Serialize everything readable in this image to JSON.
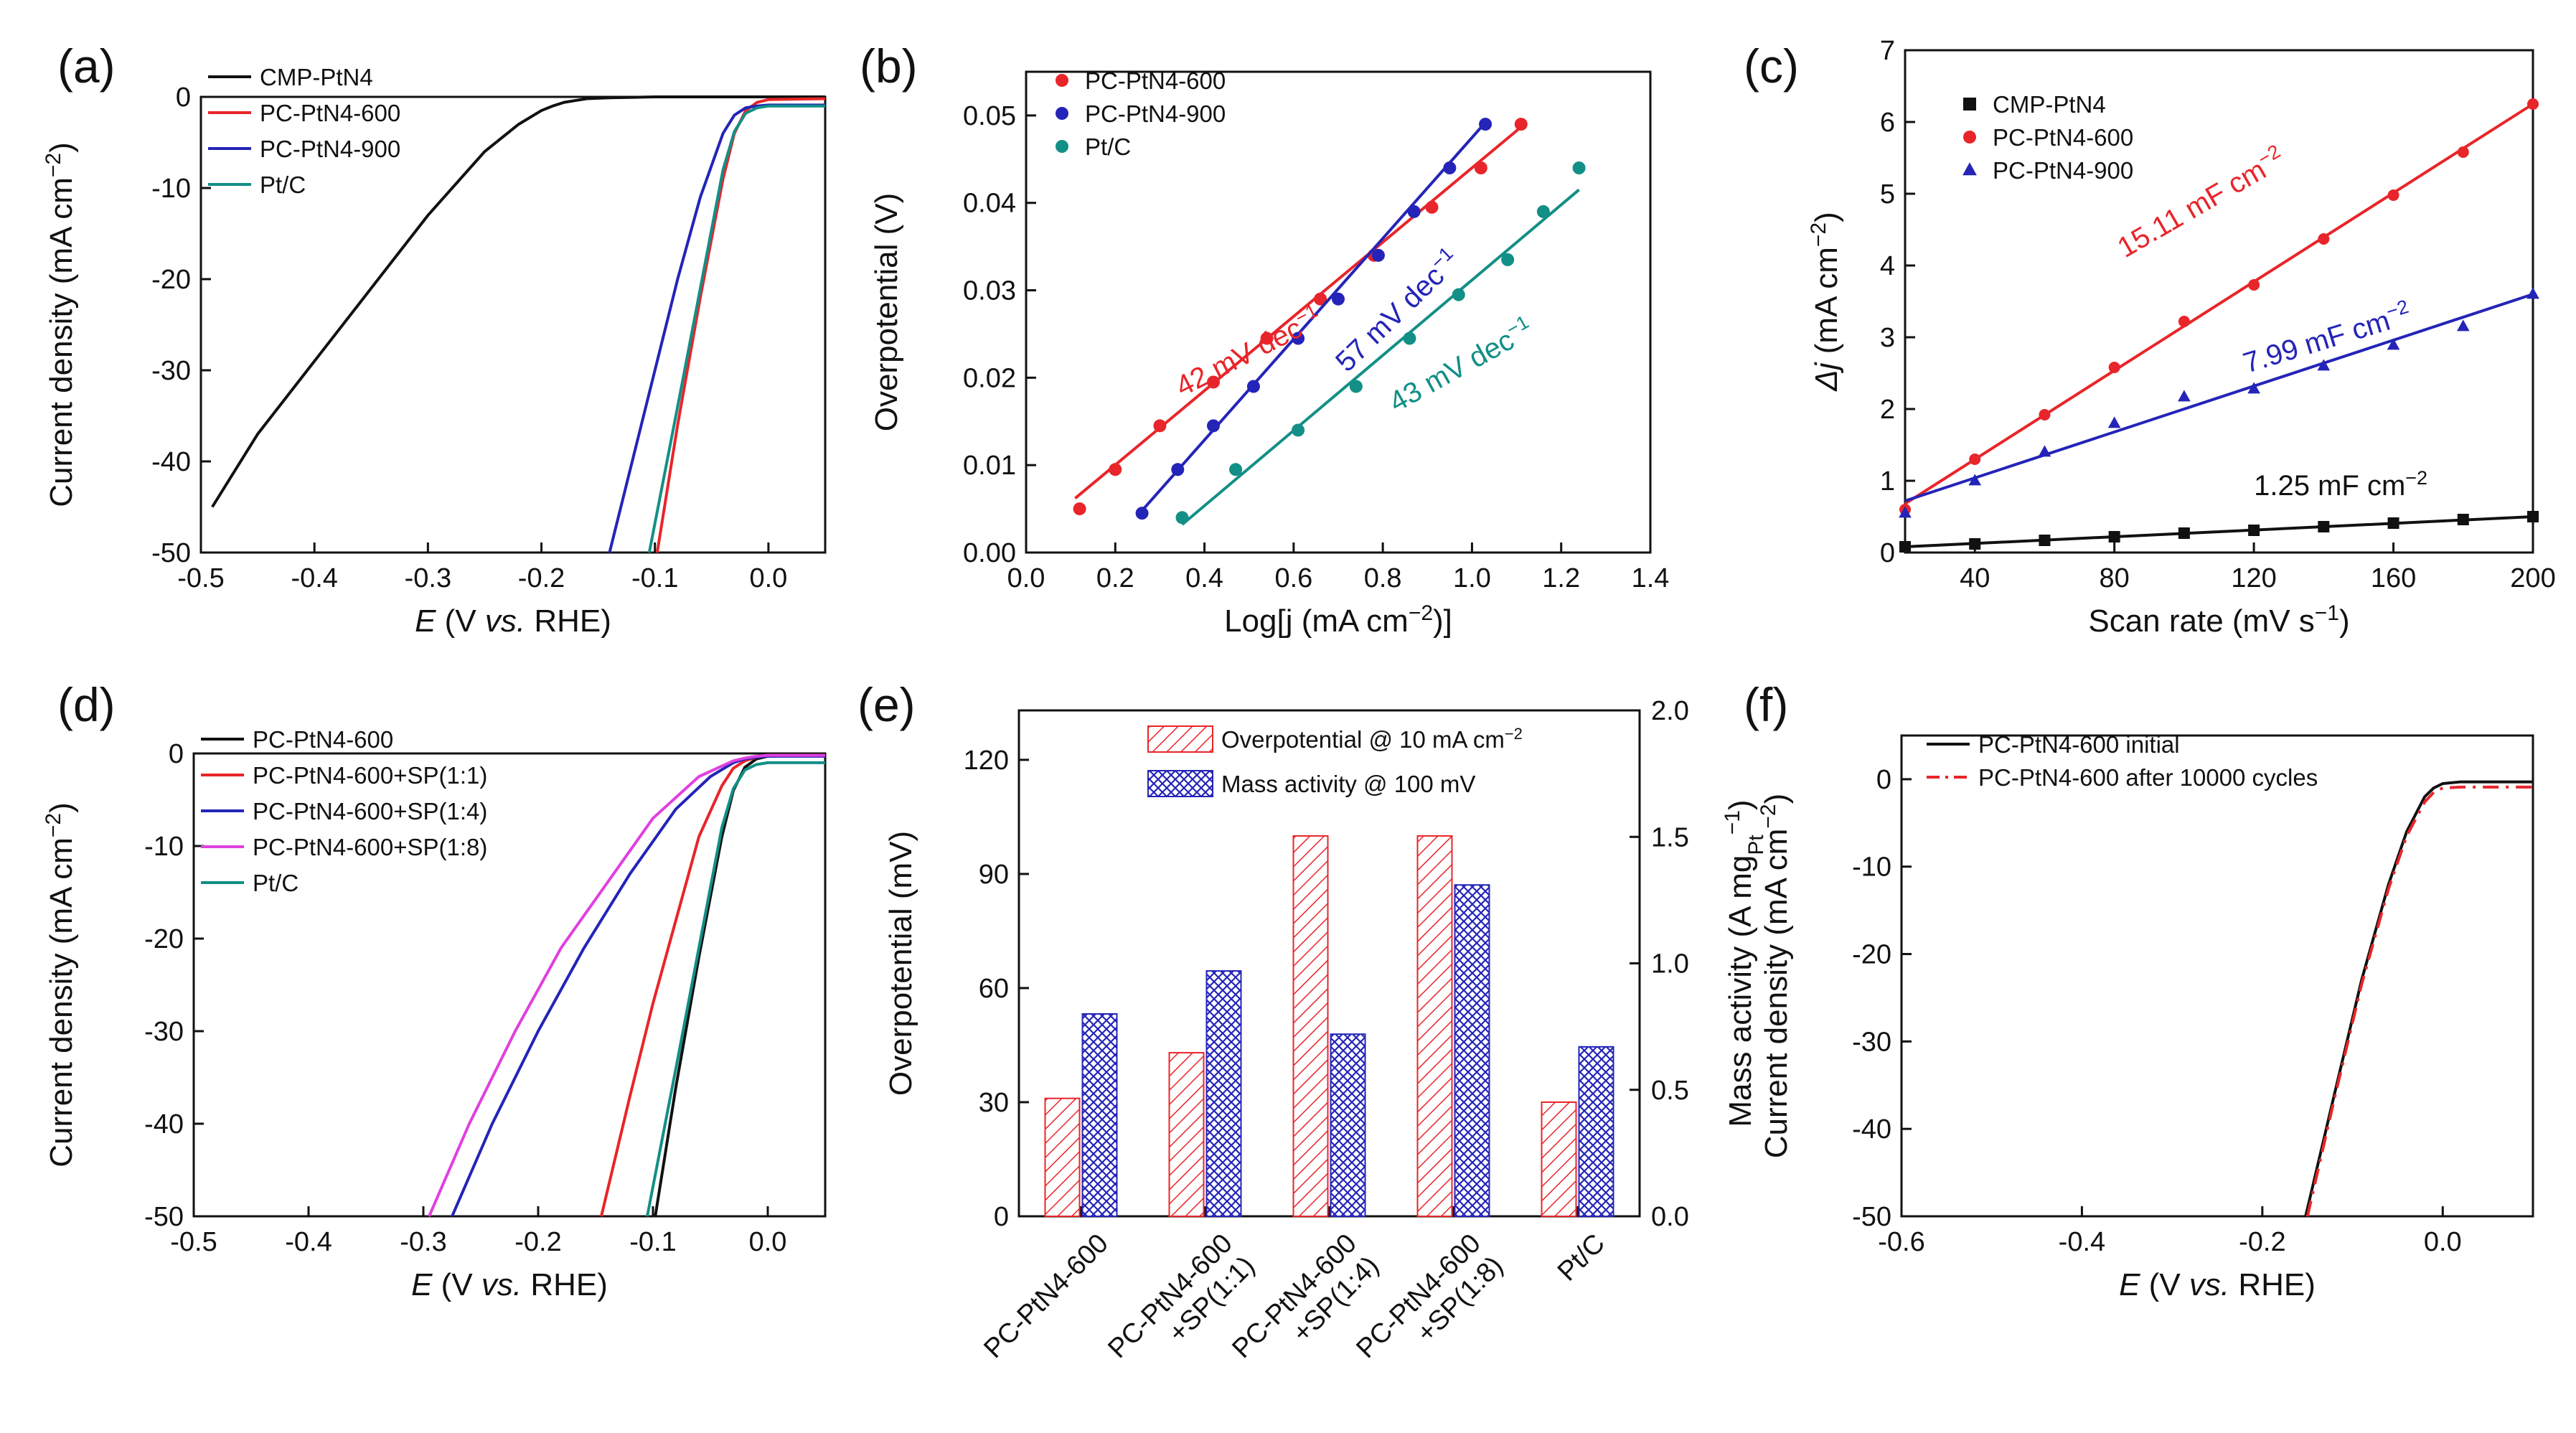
{
  "figure": {
    "colors": {
      "black": "#111111",
      "red": "#e8252a",
      "blue": "#2424b8",
      "teal": "#128f86",
      "magenta": "#e040e0"
    }
  },
  "chart_data": [
    {
      "id": "a",
      "type": "line",
      "panel_label": "(a)",
      "title": "",
      "xlabel": {
        "italic": "E",
        "pre": " (V ",
        "italic2": "vs.",
        "post": " RHE)"
      },
      "ylabel": {
        "text": "Current density (mA cm",
        "sup": "−2",
        "post": ")"
      },
      "xlim": [
        -0.5,
        0.05
      ],
      "ylim": [
        -50,
        0
      ],
      "xticks": [
        -0.5,
        -0.4,
        -0.3,
        -0.2,
        -0.1,
        0.0
      ],
      "xtick_labels": [
        "-0.5",
        "-0.4",
        "-0.3",
        "-0.2",
        "-0.1",
        "0.0"
      ],
      "yticks": [
        -50,
        -40,
        -30,
        -20,
        -10,
        0
      ],
      "ytick_labels": [
        "-50",
        "-40",
        "-30",
        "-20",
        "-10",
        "0"
      ],
      "legend": {
        "position": "top-left"
      },
      "series": [
        {
          "name": "CMP-PtN4",
          "color": "#111111",
          "x": [
            -0.49,
            -0.45,
            -0.4,
            -0.35,
            -0.3,
            -0.25,
            -0.22,
            -0.2,
            -0.19,
            -0.18,
            -0.17,
            -0.16,
            -0.14,
            -0.1,
            0.0,
            0.05
          ],
          "y": [
            -45,
            -37,
            -29,
            -21,
            -13,
            -6,
            -3,
            -1.5,
            -1,
            -0.6,
            -0.4,
            -0.2,
            -0.1,
            0,
            0,
            0
          ]
        },
        {
          "name": "PC-PtN4-600",
          "color": "#e8252a",
          "x": [
            -0.098,
            -0.08,
            -0.06,
            -0.04,
            -0.03,
            -0.02,
            -0.01,
            0.0,
            0.05
          ],
          "y": [
            -50,
            -36,
            -22,
            -9,
            -4,
            -1.5,
            -0.6,
            -0.3,
            -0.2
          ]
        },
        {
          "name": "PC-PtN4-900",
          "color": "#2424b8",
          "x": [
            -0.14,
            -0.12,
            -0.1,
            -0.08,
            -0.06,
            -0.04,
            -0.03,
            -0.02,
            -0.01,
            0.0,
            0.05
          ],
          "y": [
            -50,
            -40,
            -30,
            -20,
            -11,
            -4,
            -2,
            -1.2,
            -1,
            -0.9,
            -0.9
          ]
        },
        {
          "name": "Pt/C",
          "color": "#128f86",
          "x": [
            -0.105,
            -0.08,
            -0.06,
            -0.04,
            -0.03,
            -0.02,
            -0.01,
            0.0,
            0.05
          ],
          "y": [
            -50,
            -34,
            -21,
            -8,
            -3.8,
            -1.8,
            -1.2,
            -1,
            -1
          ]
        }
      ]
    },
    {
      "id": "b",
      "type": "scatter",
      "panel_label": "(b)",
      "title": "",
      "xlabel": {
        "text": "Log[j (mA cm",
        "sup": "−2",
        "post": ")]"
      },
      "ylabel": {
        "text": "Overpotential (V)"
      },
      "xlim": [
        0.0,
        1.4
      ],
      "ylim": [
        0.0,
        0.055
      ],
      "xticks": [
        0.0,
        0.2,
        0.4,
        0.6,
        0.8,
        1.0,
        1.2,
        1.4
      ],
      "xtick_labels": [
        "0.0",
        "0.2",
        "0.4",
        "0.6",
        "0.8",
        "1.0",
        "1.2",
        "1.4"
      ],
      "yticks": [
        0.0,
        0.01,
        0.02,
        0.03,
        0.04,
        0.05
      ],
      "ytick_labels": [
        "0.00",
        "0.01",
        "0.02",
        "0.03",
        "0.04",
        "0.05"
      ],
      "legend": {
        "position": "top-left"
      },
      "series": [
        {
          "name": "PC-PtN4-600",
          "color": "#e8252a",
          "x": [
            0.12,
            0.2,
            0.3,
            0.42,
            0.54,
            0.66,
            0.78,
            0.91,
            1.02,
            1.11
          ],
          "y": [
            0.005,
            0.0095,
            0.0145,
            0.0195,
            0.0245,
            0.029,
            0.034,
            0.0395,
            0.044,
            0.049
          ],
          "fit": [
            [
              0.11,
              0.0062
            ],
            [
              1.12,
              0.0491
            ]
          ]
        },
        {
          "name": "PC-PtN4-900",
          "color": "#2424b8",
          "x": [
            0.26,
            0.34,
            0.42,
            0.51,
            0.61,
            0.7,
            0.79,
            0.87,
            0.95,
            1.03
          ],
          "y": [
            0.0045,
            0.0095,
            0.0145,
            0.019,
            0.0245,
            0.029,
            0.034,
            0.039,
            0.044,
            0.049
          ],
          "fit": [
            [
              0.26,
              0.0048
            ],
            [
              1.03,
              0.0492
            ]
          ]
        },
        {
          "name": "Pt/C",
          "color": "#128f86",
          "x": [
            0.35,
            0.47,
            0.61,
            0.74,
            0.86,
            0.97,
            1.08,
            1.16,
            1.24
          ],
          "y": [
            0.004,
            0.0095,
            0.014,
            0.019,
            0.0245,
            0.0295,
            0.0335,
            0.039,
            0.044
          ],
          "fit": [
            [
              0.35,
              0.0032
            ],
            [
              1.24,
              0.0415
            ]
          ]
        }
      ],
      "annotations": [
        {
          "text": "42 mV dec",
          "sup": "−1",
          "color": "#e8252a"
        },
        {
          "text": "57 mV dec",
          "sup": "−1",
          "color": "#2424b8"
        },
        {
          "text": "43 mV dec",
          "sup": "−1",
          "color": "#128f86"
        }
      ]
    },
    {
      "id": "c",
      "type": "scatter",
      "panel_label": "(c)",
      "title": "",
      "xlabel": {
        "text": "Scan rate (mV s",
        "sup": "−1",
        "post": ")"
      },
      "ylabel": {
        "italic": "Δj",
        "text": " (mA cm",
        "sup": "−2",
        "post": ")"
      },
      "xlim": [
        20,
        200
      ],
      "ylim": [
        0,
        7
      ],
      "xticks": [
        40,
        80,
        120,
        160,
        200
      ],
      "xtick_labels": [
        "40",
        "80",
        "120",
        "160",
        "200"
      ],
      "yticks": [
        0,
        1,
        2,
        3,
        4,
        5,
        6,
        7
      ],
      "ytick_labels": [
        "0",
        "1",
        "2",
        "3",
        "4",
        "5",
        "6",
        "7"
      ],
      "legend": {
        "position": "top-left"
      },
      "series": [
        {
          "name": "CMP-PtN4",
          "color": "#111111",
          "marker": "square",
          "x": [
            20,
            40,
            60,
            80,
            100,
            120,
            140,
            160,
            180,
            200
          ],
          "y": [
            0.08,
            0.12,
            0.17,
            0.22,
            0.27,
            0.31,
            0.36,
            0.41,
            0.46,
            0.5
          ],
          "fit": [
            [
              20,
              0.08
            ],
            [
              200,
              0.5
            ]
          ]
        },
        {
          "name": "PC-PtN4-600",
          "color": "#e8252a",
          "marker": "circle",
          "x": [
            20,
            40,
            60,
            80,
            100,
            120,
            140,
            160,
            180,
            200
          ],
          "y": [
            0.6,
            1.3,
            1.92,
            2.58,
            3.22,
            3.73,
            4.37,
            4.98,
            5.58,
            6.25
          ],
          "fit": [
            [
              20,
              0.68
            ],
            [
              200,
              6.25
            ]
          ]
        },
        {
          "name": "PC-PtN4-900",
          "color": "#2424b8",
          "marker": "triangle",
          "x": [
            20,
            40,
            60,
            80,
            100,
            120,
            140,
            160,
            180,
            200
          ],
          "y": [
            0.55,
            1.0,
            1.4,
            1.8,
            2.17,
            2.28,
            2.6,
            2.89,
            3.15,
            3.6
          ],
          "fit": [
            [
              20,
              0.72
            ],
            [
              200,
              3.6
            ]
          ]
        }
      ],
      "annotations": [
        {
          "text": "15.11 mF cm",
          "sup": "−2",
          "color": "#e8252a"
        },
        {
          "text": "7.99 mF cm",
          "sup": "−2",
          "color": "#2424b8"
        },
        {
          "text": "1.25 mF cm",
          "sup": "−2",
          "color": "#111111"
        }
      ]
    },
    {
      "id": "d",
      "type": "line",
      "panel_label": "(d)",
      "title": "",
      "xlabel": {
        "italic": "E",
        "pre": " (V ",
        "italic2": "vs.",
        "post": " RHE)"
      },
      "ylabel": {
        "text": "Current density (mA cm",
        "sup": "−2",
        "post": ")"
      },
      "xlim": [
        -0.5,
        0.05
      ],
      "ylim": [
        -50,
        0
      ],
      "xticks": [
        -0.5,
        -0.4,
        -0.3,
        -0.2,
        -0.1,
        0.0
      ],
      "xtick_labels": [
        "-0.5",
        "-0.4",
        "-0.3",
        "-0.2",
        "-0.1",
        "0.0"
      ],
      "yticks": [
        -50,
        -40,
        -30,
        -20,
        -10,
        0
      ],
      "ytick_labels": [
        "-50",
        "-40",
        "-30",
        "-20",
        "-10",
        "0"
      ],
      "legend": {
        "position": "top-left"
      },
      "series": [
        {
          "name": "PC-PtN4-600",
          "color": "#111111",
          "x": [
            -0.098,
            -0.08,
            -0.06,
            -0.04,
            -0.03,
            -0.02,
            -0.01,
            0.0,
            0.05
          ],
          "y": [
            -50,
            -36,
            -22,
            -9,
            -4,
            -1.5,
            -0.6,
            -0.3,
            -0.2
          ]
        },
        {
          "name": "PC-PtN4-600+SP(1:1)",
          "color": "#e8252a",
          "x": [
            -0.145,
            -0.12,
            -0.1,
            -0.08,
            -0.06,
            -0.04,
            -0.03,
            -0.02,
            -0.01,
            0.0,
            0.05
          ],
          "y": [
            -50,
            -37,
            -27,
            -18,
            -9,
            -3.5,
            -1.6,
            -0.8,
            -0.4,
            -0.2,
            -0.2
          ]
        },
        {
          "name": "PC-PtN4-600+SP(1:4)",
          "color": "#2424b8",
          "x": [
            -0.275,
            -0.24,
            -0.2,
            -0.16,
            -0.12,
            -0.08,
            -0.05,
            -0.03,
            -0.02,
            -0.01,
            0.0,
            0.05
          ],
          "y": [
            -50,
            -40,
            -30,
            -21,
            -13,
            -6,
            -2.5,
            -1,
            -0.6,
            -0.4,
            -0.3,
            -0.3
          ]
        },
        {
          "name": "PC-PtN4-600+SP(1:8)",
          "color": "#e040e0",
          "x": [
            -0.295,
            -0.26,
            -0.22,
            -0.18,
            -0.14,
            -0.1,
            -0.06,
            -0.03,
            -0.02,
            -0.01,
            0.0,
            0.05
          ],
          "y": [
            -50,
            -40,
            -30,
            -21,
            -14,
            -7,
            -2.5,
            -0.8,
            -0.5,
            -0.3,
            -0.2,
            -0.2
          ]
        },
        {
          "name": "Pt/C",
          "color": "#128f86",
          "x": [
            -0.105,
            -0.08,
            -0.06,
            -0.04,
            -0.03,
            -0.02,
            -0.01,
            0.0,
            0.05
          ],
          "y": [
            -50,
            -34,
            -21,
            -8,
            -3.8,
            -1.8,
            -1.2,
            -1,
            -1
          ]
        }
      ]
    },
    {
      "id": "e",
      "type": "bar",
      "panel_label": "(e)",
      "title": "",
      "categories": [
        "PC-PtN4-600",
        "PC-PtN4-600\n+SP(1:1)",
        "PC-PtN4-600\n+SP(1:4)",
        "PC-PtN4-600\n+SP(1:8)",
        "Pt/C"
      ],
      "xlabel": "",
      "ylabel": {
        "text": "Overpotential (mV)"
      },
      "ylabel_right": {
        "text": "Mass activity (A mg",
        "sub": "Pt",
        "sup": "−1",
        "post": ")"
      },
      "ylim": [
        0,
        133
      ],
      "ylim_right": [
        0,
        2.0
      ],
      "yticks": [
        0,
        30,
        60,
        90,
        120
      ],
      "ytick_labels": [
        "0",
        "30",
        "60",
        "90",
        "120"
      ],
      "yticks_right": [
        0.0,
        0.5,
        1.0,
        1.5,
        2.0
      ],
      "ytick_labels_right": [
        "0.0",
        "0.5",
        "1.0",
        "1.5",
        "2.0"
      ],
      "legend": {
        "position": "top-center"
      },
      "series": [
        {
          "name": "Overpotential @ 10 mA cm",
          "sup": "−2",
          "axis": "left",
          "color": "#e8252a",
          "values": [
            31,
            43,
            100,
            100,
            30
          ]
        },
        {
          "name": "Mass activity @ 100 mV",
          "axis": "right",
          "color": "#2424b8",
          "values": [
            0.8,
            0.97,
            0.72,
            1.31,
            0.67
          ]
        }
      ]
    },
    {
      "id": "f",
      "type": "line",
      "panel_label": "(f)",
      "title": "",
      "xlabel": {
        "italic": "E",
        "pre": " (V ",
        "italic2": "vs.",
        "post": " RHE)"
      },
      "ylabel": {
        "text": "Current density (mA cm",
        "sup": "−2",
        "post": ")"
      },
      "xlim": [
        -0.6,
        0.1
      ],
      "ylim": [
        -50,
        5
      ],
      "xticks": [
        -0.6,
        -0.4,
        -0.2,
        0.0
      ],
      "xtick_labels": [
        "-0.6",
        "-0.4",
        "-0.2",
        "0.0"
      ],
      "yticks": [
        -50,
        -40,
        -30,
        -20,
        -10,
        0
      ],
      "ytick_labels": [
        "-50",
        "-40",
        "-30",
        "-20",
        "-10",
        "0"
      ],
      "legend": {
        "position": "top-left"
      },
      "series": [
        {
          "name": "PC-PtN4-600 initial",
          "color": "#111111",
          "dash": "solid",
          "x": [
            -0.152,
            -0.12,
            -0.09,
            -0.06,
            -0.04,
            -0.02,
            -0.01,
            0.0,
            0.02,
            0.1
          ],
          "y": [
            -50,
            -36,
            -23,
            -12,
            -6,
            -2,
            -1,
            -0.5,
            -0.3,
            -0.3
          ]
        },
        {
          "name": "PC-PtN4-600 after 10000 cycles",
          "color": "#e8252a",
          "dash": "dashdot",
          "x": [
            -0.15,
            -0.12,
            -0.09,
            -0.06,
            -0.04,
            -0.02,
            -0.01,
            0.0,
            0.02,
            0.1
          ],
          "y": [
            -50,
            -36.5,
            -23.5,
            -12.5,
            -6.5,
            -2.6,
            -1.5,
            -1,
            -0.9,
            -0.9
          ]
        }
      ]
    }
  ]
}
